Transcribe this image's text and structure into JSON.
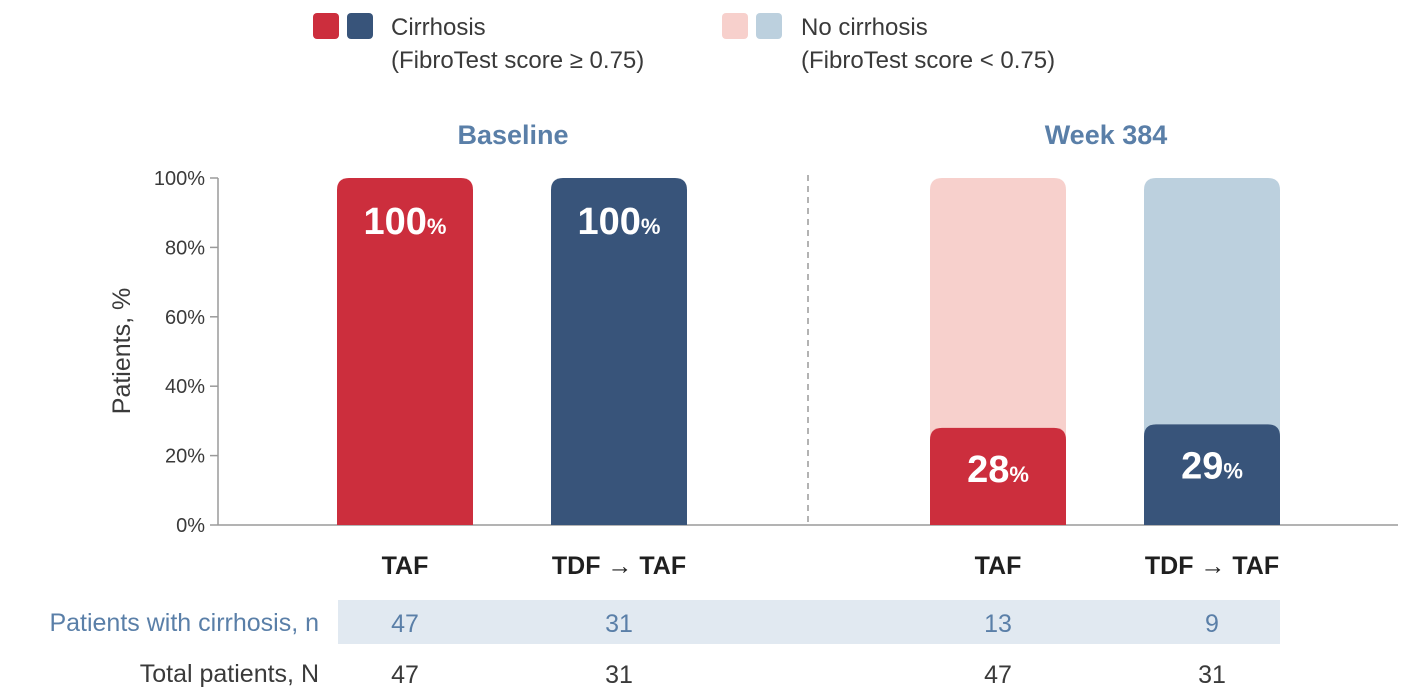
{
  "legend": [
    {
      "label": "Cirrhosis",
      "sublabel": "(FibroTest score ≥ 0.75)",
      "colors": [
        "#cc2e3d",
        "#38547a"
      ]
    },
    {
      "label": "No cirrhosis",
      "sublabel": "(FibroTest score < 0.75)",
      "colors": [
        "#f7d0cc",
        "#bcd0de"
      ]
    }
  ],
  "table": {
    "row1_label": "Patients with cirrhosis, n",
    "row2_label": "Total patients, N",
    "row1_values": [
      "47",
      "31",
      "13",
      "9"
    ],
    "row2_values": [
      "47",
      "31",
      "47",
      "31"
    ],
    "band_color": "#e1e9f1"
  },
  "chart_data": {
    "type": "bar",
    "ylabel": "Patients, %",
    "ylim": [
      0,
      100
    ],
    "yticks": [
      0,
      20,
      40,
      60,
      80,
      100
    ],
    "ytick_labels": [
      "0%",
      "20%",
      "40%",
      "60%",
      "80%",
      "100%"
    ],
    "stacked": true,
    "panels": [
      {
        "title": "Baseline",
        "categories": [
          "TAF",
          "TDF → TAF"
        ],
        "series": [
          {
            "name": "Cirrhosis",
            "values": [
              100,
              100
            ],
            "colors": [
              "#cc2e3d",
              "#38547a"
            ]
          },
          {
            "name": "No cirrhosis",
            "values": [
              0,
              0
            ],
            "colors": [
              "#f7d0cc",
              "#bcd0de"
            ]
          }
        ],
        "data_labels": [
          {
            "num": "100",
            "unit": "%"
          },
          {
            "num": "100",
            "unit": "%"
          }
        ]
      },
      {
        "title": "Week 384",
        "categories": [
          "TAF",
          "TDF → TAF"
        ],
        "series": [
          {
            "name": "Cirrhosis",
            "values": [
              28,
              29
            ],
            "colors": [
              "#cc2e3d",
              "#38547a"
            ]
          },
          {
            "name": "No cirrhosis",
            "values": [
              72,
              71
            ],
            "colors": [
              "#f7d0cc",
              "#bcd0de"
            ]
          }
        ],
        "data_labels": [
          {
            "num": "28",
            "unit": "%"
          },
          {
            "num": "29",
            "unit": "%"
          }
        ]
      }
    ]
  }
}
